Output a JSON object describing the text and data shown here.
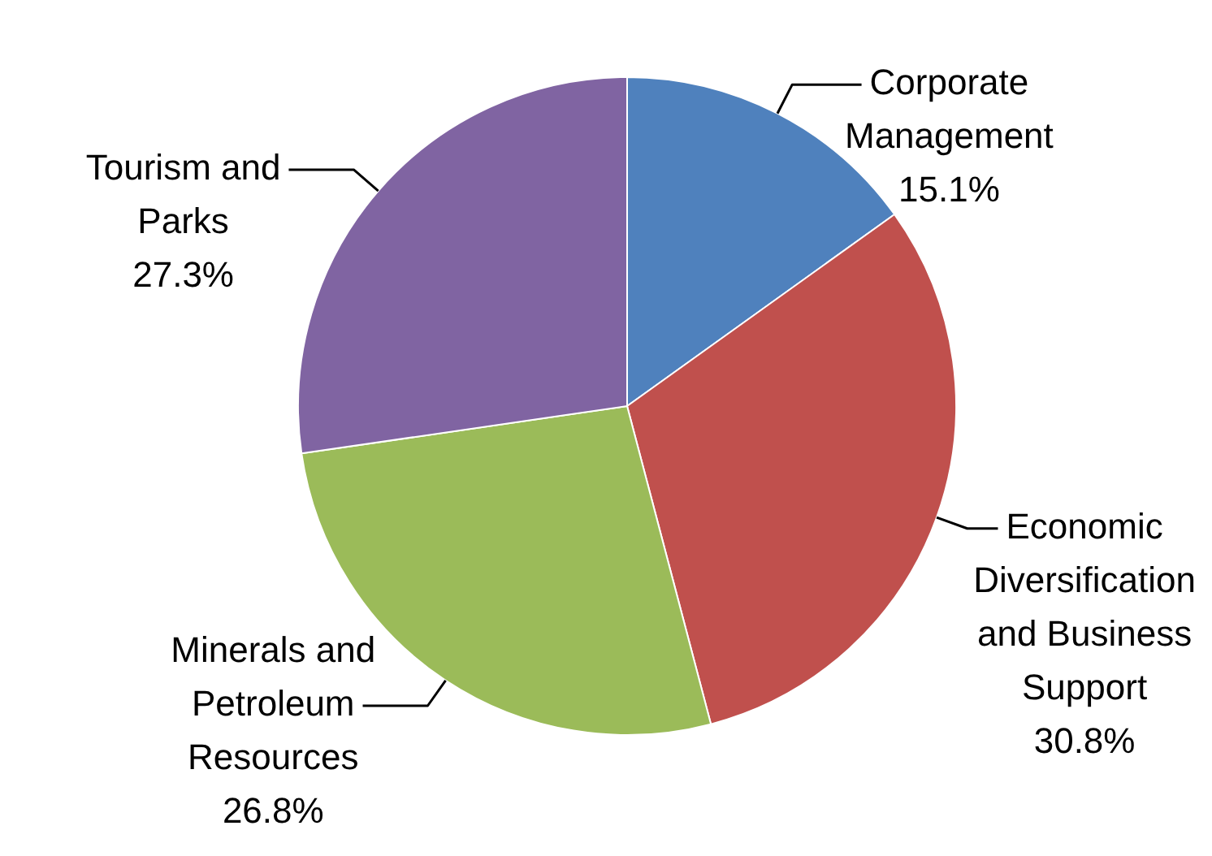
{
  "chart_data": {
    "type": "pie",
    "categories": [
      "Corporate Management",
      "Economic Diversification and Business Support",
      "Minerals and Petroleum Resources",
      "Tourism and Parks"
    ],
    "values": [
      15.1,
      30.8,
      26.8,
      27.3
    ],
    "colors": [
      "#4f81bd",
      "#c0504d",
      "#9bbb59",
      "#8064a2"
    ],
    "value_labels": [
      "15.1%",
      "30.8%",
      "26.8%",
      "27.3%"
    ]
  }
}
